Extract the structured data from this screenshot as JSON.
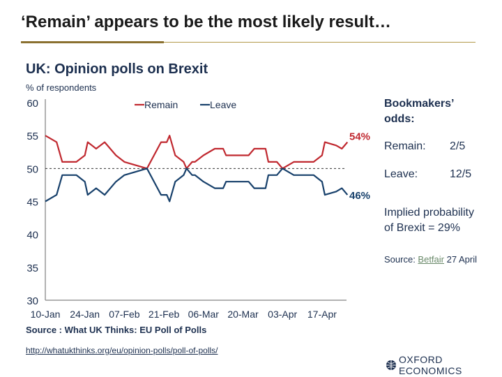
{
  "slide": {
    "title": "‘Remain’ appears to be the most likely result…"
  },
  "chart_data": {
    "type": "line",
    "title": "UK: Opinion polls on Brexit",
    "ylabel": "% of respondents",
    "xlabel": "",
    "ylim": [
      30,
      60
    ],
    "yticks": [
      60,
      55,
      50,
      45,
      40,
      35,
      30
    ],
    "xticks": [
      "10-Jan",
      "24-Jan",
      "07-Feb",
      "21-Feb",
      "06-Mar",
      "20-Mar",
      "03-Apr",
      "17-Apr"
    ],
    "reference_line": 50,
    "legend": "top-center",
    "x": [
      "10-Jan",
      "14-Jan",
      "16-Jan",
      "21-Jan",
      "24-Jan",
      "25-Jan",
      "28-Jan",
      "31-Jan",
      "04-Feb",
      "07-Feb",
      "15-Feb",
      "20-Feb",
      "22-Feb",
      "23-Feb",
      "25-Feb",
      "28-Feb",
      "29-Feb",
      "02-Mar",
      "03-Mar",
      "06-Mar",
      "10-Mar",
      "13-Mar",
      "14-Mar",
      "22-Mar",
      "24-Mar",
      "28-Mar",
      "29-Mar",
      "01-Apr",
      "03-Apr",
      "07-Apr",
      "14-Apr",
      "17-Apr",
      "18-Apr",
      "22-Apr",
      "24-Apr",
      "26-Apr"
    ],
    "series": [
      {
        "name": "Remain",
        "color": "#c0282f",
        "end_label": "54%",
        "values": [
          55,
          54,
          51,
          51,
          52,
          54,
          53,
          54,
          52,
          51,
          50,
          54,
          54,
          55,
          52,
          51,
          50,
          51,
          51,
          52,
          53,
          53,
          52,
          52,
          53,
          53,
          51,
          51,
          50,
          51,
          51,
          52,
          54,
          53.5,
          53,
          54
        ]
      },
      {
        "name": "Leave",
        "color": "#17406b",
        "end_label": "46%",
        "values": [
          45,
          46,
          49,
          49,
          48,
          46,
          47,
          46,
          48,
          49,
          50,
          46,
          46,
          45,
          48,
          49,
          50,
          49,
          49,
          48,
          47,
          47,
          48,
          48,
          47,
          47,
          49,
          49,
          50,
          49,
          49,
          48,
          46,
          46.5,
          47,
          46
        ]
      }
    ],
    "source": "Source : What UK Thinks: EU Poll of Polls"
  },
  "link": {
    "url_text": "http://whatukthinks.org/eu/opinion-polls/poll-of-polls/"
  },
  "odds": {
    "title_line1": "Bookmakers’",
    "title_line2": "odds:",
    "remain_label": "Remain:",
    "remain_value": "2/5",
    "leave_label": "Leave:",
    "leave_value": "12/5",
    "implied_line1": "Implied probability",
    "implied_line2": "of Brexit = 29%",
    "source_prefix": "Source: ",
    "source_link": "Betfair",
    "source_suffix": " 27 April"
  },
  "logo": {
    "text": "OXFORD ECONOMICS"
  }
}
